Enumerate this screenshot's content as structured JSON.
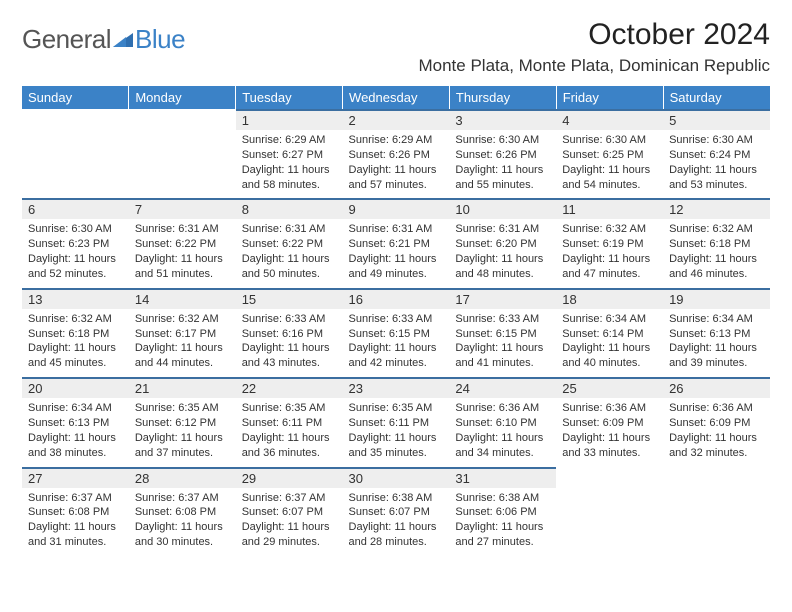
{
  "brand": {
    "word1": "General",
    "word2": "Blue"
  },
  "title": "October 2024",
  "location": "Monte Plata, Monte Plata, Dominican Republic",
  "colors": {
    "header_bg": "#3b82c7",
    "header_text": "#ffffff",
    "daynum_bg": "#eeeeee",
    "daynum_border": "#3b6ea0",
    "body_text": "#333333"
  },
  "typography": {
    "title_fontsize": 30,
    "location_fontsize": 17,
    "weekday_fontsize": 13,
    "daynum_fontsize": 13,
    "body_fontsize": 11
  },
  "weekdays": [
    "Sunday",
    "Monday",
    "Tuesday",
    "Wednesday",
    "Thursday",
    "Friday",
    "Saturday"
  ],
  "weeks": [
    [
      null,
      null,
      {
        "n": "1",
        "sunrise": "6:29 AM",
        "sunset": "6:27 PM",
        "dl": "11 hours and 58 minutes."
      },
      {
        "n": "2",
        "sunrise": "6:29 AM",
        "sunset": "6:26 PM",
        "dl": "11 hours and 57 minutes."
      },
      {
        "n": "3",
        "sunrise": "6:30 AM",
        "sunset": "6:26 PM",
        "dl": "11 hours and 55 minutes."
      },
      {
        "n": "4",
        "sunrise": "6:30 AM",
        "sunset": "6:25 PM",
        "dl": "11 hours and 54 minutes."
      },
      {
        "n": "5",
        "sunrise": "6:30 AM",
        "sunset": "6:24 PM",
        "dl": "11 hours and 53 minutes."
      }
    ],
    [
      {
        "n": "6",
        "sunrise": "6:30 AM",
        "sunset": "6:23 PM",
        "dl": "11 hours and 52 minutes."
      },
      {
        "n": "7",
        "sunrise": "6:31 AM",
        "sunset": "6:22 PM",
        "dl": "11 hours and 51 minutes."
      },
      {
        "n": "8",
        "sunrise": "6:31 AM",
        "sunset": "6:22 PM",
        "dl": "11 hours and 50 minutes."
      },
      {
        "n": "9",
        "sunrise": "6:31 AM",
        "sunset": "6:21 PM",
        "dl": "11 hours and 49 minutes."
      },
      {
        "n": "10",
        "sunrise": "6:31 AM",
        "sunset": "6:20 PM",
        "dl": "11 hours and 48 minutes."
      },
      {
        "n": "11",
        "sunrise": "6:32 AM",
        "sunset": "6:19 PM",
        "dl": "11 hours and 47 minutes."
      },
      {
        "n": "12",
        "sunrise": "6:32 AM",
        "sunset": "6:18 PM",
        "dl": "11 hours and 46 minutes."
      }
    ],
    [
      {
        "n": "13",
        "sunrise": "6:32 AM",
        "sunset": "6:18 PM",
        "dl": "11 hours and 45 minutes."
      },
      {
        "n": "14",
        "sunrise": "6:32 AM",
        "sunset": "6:17 PM",
        "dl": "11 hours and 44 minutes."
      },
      {
        "n": "15",
        "sunrise": "6:33 AM",
        "sunset": "6:16 PM",
        "dl": "11 hours and 43 minutes."
      },
      {
        "n": "16",
        "sunrise": "6:33 AM",
        "sunset": "6:15 PM",
        "dl": "11 hours and 42 minutes."
      },
      {
        "n": "17",
        "sunrise": "6:33 AM",
        "sunset": "6:15 PM",
        "dl": "11 hours and 41 minutes."
      },
      {
        "n": "18",
        "sunrise": "6:34 AM",
        "sunset": "6:14 PM",
        "dl": "11 hours and 40 minutes."
      },
      {
        "n": "19",
        "sunrise": "6:34 AM",
        "sunset": "6:13 PM",
        "dl": "11 hours and 39 minutes."
      }
    ],
    [
      {
        "n": "20",
        "sunrise": "6:34 AM",
        "sunset": "6:13 PM",
        "dl": "11 hours and 38 minutes."
      },
      {
        "n": "21",
        "sunrise": "6:35 AM",
        "sunset": "6:12 PM",
        "dl": "11 hours and 37 minutes."
      },
      {
        "n": "22",
        "sunrise": "6:35 AM",
        "sunset": "6:11 PM",
        "dl": "11 hours and 36 minutes."
      },
      {
        "n": "23",
        "sunrise": "6:35 AM",
        "sunset": "6:11 PM",
        "dl": "11 hours and 35 minutes."
      },
      {
        "n": "24",
        "sunrise": "6:36 AM",
        "sunset": "6:10 PM",
        "dl": "11 hours and 34 minutes."
      },
      {
        "n": "25",
        "sunrise": "6:36 AM",
        "sunset": "6:09 PM",
        "dl": "11 hours and 33 minutes."
      },
      {
        "n": "26",
        "sunrise": "6:36 AM",
        "sunset": "6:09 PM",
        "dl": "11 hours and 32 minutes."
      }
    ],
    [
      {
        "n": "27",
        "sunrise": "6:37 AM",
        "sunset": "6:08 PM",
        "dl": "11 hours and 31 minutes."
      },
      {
        "n": "28",
        "sunrise": "6:37 AM",
        "sunset": "6:08 PM",
        "dl": "11 hours and 30 minutes."
      },
      {
        "n": "29",
        "sunrise": "6:37 AM",
        "sunset": "6:07 PM",
        "dl": "11 hours and 29 minutes."
      },
      {
        "n": "30",
        "sunrise": "6:38 AM",
        "sunset": "6:07 PM",
        "dl": "11 hours and 28 minutes."
      },
      {
        "n": "31",
        "sunrise": "6:38 AM",
        "sunset": "6:06 PM",
        "dl": "11 hours and 27 minutes."
      },
      null,
      null
    ]
  ],
  "labels": {
    "sunrise": "Sunrise:",
    "sunset": "Sunset:",
    "daylight": "Daylight:"
  }
}
